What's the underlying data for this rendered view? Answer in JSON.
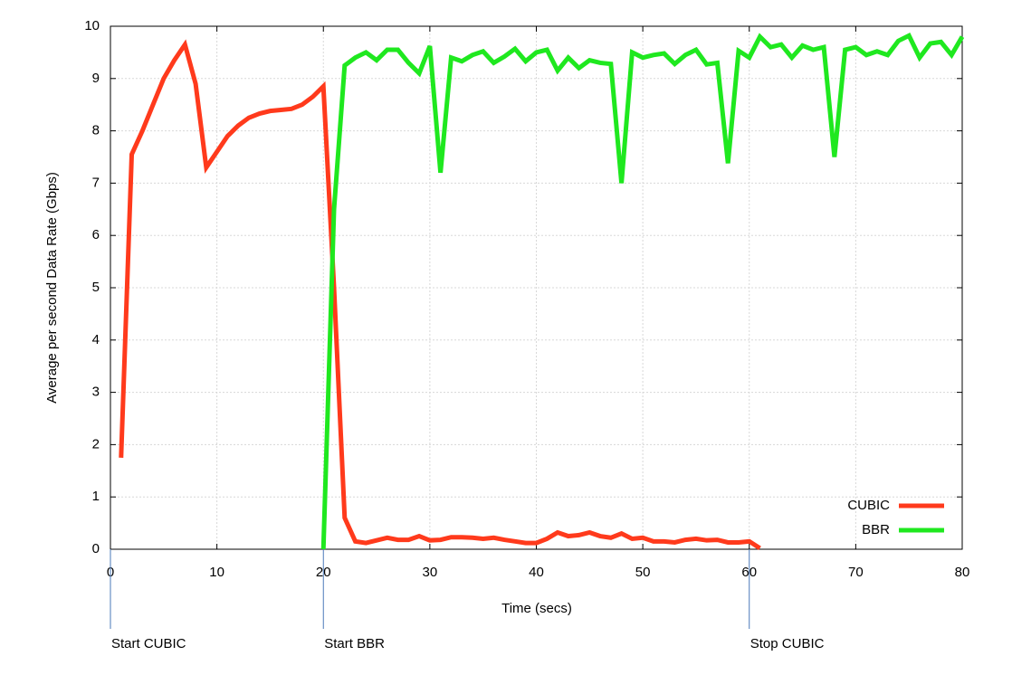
{
  "chart_data": {
    "type": "line",
    "xlabel": "Time (secs)",
    "ylabel": "Average per second Data Rate (Gbps)",
    "x": [
      1,
      2,
      3,
      4,
      5,
      6,
      7,
      8,
      9,
      10,
      11,
      12,
      13,
      14,
      15,
      16,
      17,
      18,
      19,
      20,
      21,
      22,
      23,
      24,
      25,
      26,
      27,
      28,
      29,
      30,
      31,
      32,
      33,
      34,
      35,
      36,
      37,
      38,
      39,
      40,
      41,
      42,
      43,
      44,
      45,
      46,
      47,
      48,
      49,
      50,
      51,
      52,
      53,
      54,
      55,
      56,
      57,
      58,
      59,
      60,
      61,
      62,
      63,
      64,
      65,
      66,
      67,
      68,
      69,
      70,
      71,
      72,
      73,
      74,
      75,
      76,
      77,
      78,
      79,
      80
    ],
    "series": [
      {
        "name": "CUBIC",
        "color": "#ff3a1c",
        "values": [
          1.75,
          7.55,
          8.0,
          8.5,
          9.0,
          9.35,
          9.65,
          8.9,
          7.3,
          7.6,
          7.9,
          8.1,
          8.25,
          8.33,
          8.38,
          8.4,
          8.42,
          8.5,
          8.65,
          8.85,
          5.0,
          0.6,
          0.15,
          0.12,
          0.17,
          0.22,
          0.18,
          0.18,
          0.25,
          0.17,
          0.18,
          0.23,
          0.23,
          0.22,
          0.2,
          0.22,
          0.18,
          0.15,
          0.12,
          0.12,
          0.2,
          0.32,
          0.25,
          0.27,
          0.32,
          0.25,
          0.22,
          0.3,
          0.2,
          0.22,
          0.15,
          0.15,
          0.13,
          0.18,
          0.2,
          0.17,
          0.18,
          0.13,
          0.13,
          0.15,
          0.02,
          null,
          null,
          null,
          null,
          null,
          null,
          null,
          null,
          null,
          null,
          null,
          null,
          null,
          null,
          null,
          null,
          null,
          null,
          null
        ]
      },
      {
        "name": "BBR",
        "color": "#1fe81f",
        "values": [
          null,
          null,
          null,
          null,
          null,
          null,
          null,
          null,
          null,
          null,
          null,
          null,
          null,
          null,
          null,
          null,
          null,
          null,
          null,
          0,
          6.5,
          9.25,
          9.4,
          9.5,
          9.35,
          9.55,
          9.55,
          9.3,
          9.1,
          9.62,
          7.2,
          9.4,
          9.33,
          9.45,
          9.52,
          9.3,
          9.42,
          9.57,
          9.33,
          9.5,
          9.55,
          9.15,
          9.4,
          9.2,
          9.35,
          9.3,
          9.28,
          7.0,
          9.5,
          9.4,
          9.45,
          9.48,
          9.28,
          9.45,
          9.55,
          9.27,
          9.3,
          7.38,
          9.53,
          9.4,
          9.8,
          9.6,
          9.65,
          9.4,
          9.63,
          9.55,
          9.6,
          7.5,
          9.55,
          9.6,
          9.45,
          9.52,
          9.45,
          9.72,
          9.82,
          9.4,
          9.67,
          9.7,
          9.45,
          9.8
        ]
      }
    ],
    "xlim": [
      0,
      80
    ],
    "xticks": [
      0,
      10,
      20,
      30,
      40,
      50,
      60,
      70,
      80
    ],
    "ylim": [
      0,
      10
    ],
    "yticks": [
      0,
      1,
      2,
      3,
      4,
      5,
      6,
      7,
      8,
      9,
      10
    ],
    "grid": true,
    "legend": "lower right",
    "annotations": [
      {
        "text": "Start CUBIC",
        "x": 0
      },
      {
        "text": "Start BBR",
        "x": 20
      },
      {
        "text": "Stop CUBIC",
        "x": 60
      }
    ]
  }
}
